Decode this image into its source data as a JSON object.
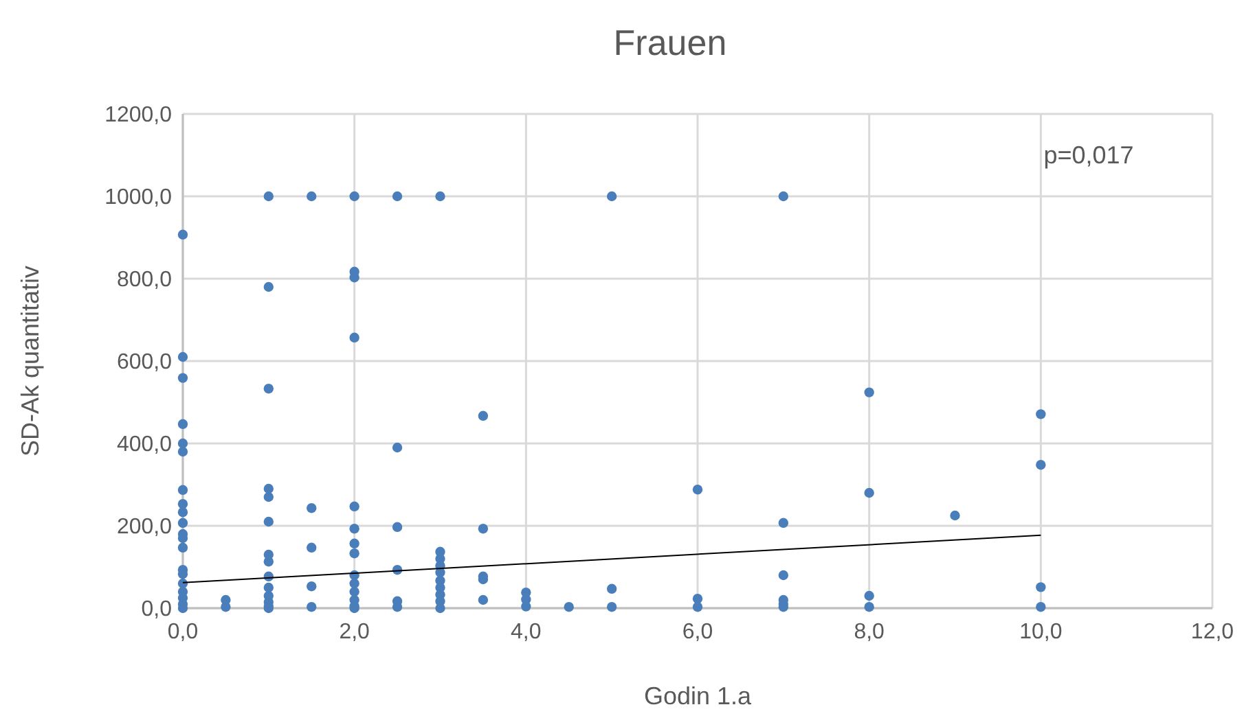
{
  "chart_data": {
    "type": "scatter",
    "title": "Frauen",
    "xlabel": "Godin 1.a",
    "ylabel": "SD-Ak quantitativ",
    "xlim": [
      0,
      12
    ],
    "ylim": [
      0,
      1200
    ],
    "xticks": [
      {
        "value": 0,
        "label": "0,0"
      },
      {
        "value": 2,
        "label": "2,0"
      },
      {
        "value": 4,
        "label": "4,0"
      },
      {
        "value": 6,
        "label": "6,0"
      },
      {
        "value": 8,
        "label": "8,0"
      },
      {
        "value": 10,
        "label": "10,0"
      },
      {
        "value": 12,
        "label": "12,0"
      }
    ],
    "yticks": [
      {
        "value": 0,
        "label": "0,0"
      },
      {
        "value": 200,
        "label": "200,0"
      },
      {
        "value": 400,
        "label": "400,0"
      },
      {
        "value": 600,
        "label": "600,0"
      },
      {
        "value": 800,
        "label": "800,0"
      },
      {
        "value": 1000,
        "label": "1000,0"
      },
      {
        "value": 1200,
        "label": "1200,0"
      }
    ],
    "grid": true,
    "marker": "circle",
    "annotations": [
      "p=0,017"
    ],
    "series": [
      {
        "color": "#4a7ebb",
        "x": [
          0,
          0,
          0,
          0,
          0,
          0,
          0,
          0,
          0,
          0,
          0,
          0,
          0,
          0,
          0,
          0,
          0,
          0,
          0,
          0,
          0.5,
          0.5,
          1,
          1,
          1,
          1,
          1,
          1,
          1,
          1,
          1,
          1,
          1,
          1,
          1,
          1,
          1.5,
          1.5,
          1.5,
          1.5,
          1.5,
          2,
          2,
          2,
          2,
          2,
          2,
          2,
          2,
          2,
          2,
          2,
          2,
          2,
          2,
          2.5,
          2.5,
          2.5,
          2.5,
          2.5,
          2.5,
          3,
          3,
          3,
          3,
          3,
          3,
          3,
          3,
          3,
          3,
          3.5,
          3.5,
          3.5,
          3.5,
          3.5,
          4,
          4,
          4,
          4.5,
          5,
          5,
          5,
          6,
          6,
          6,
          7,
          7,
          7,
          7,
          7,
          7,
          8,
          8,
          8,
          8,
          9,
          10,
          10,
          10,
          10
        ],
        "values": [
          907,
          610,
          559,
          447,
          400,
          380,
          287,
          253,
          233,
          207,
          180,
          170,
          147,
          93,
          83,
          60,
          40,
          25,
          10,
          0,
          20,
          3,
          1000,
          780,
          533,
          290,
          270,
          210,
          130,
          113,
          77,
          50,
          30,
          15,
          5,
          0,
          1000,
          243,
          147,
          53,
          3,
          1000,
          817,
          803,
          657,
          247,
          193,
          157,
          133,
          80,
          60,
          40,
          20,
          5,
          0,
          1000,
          390,
          197,
          93,
          17,
          3,
          1000,
          137,
          120,
          103,
          87,
          67,
          50,
          33,
          17,
          0,
          467,
          193,
          77,
          70,
          20,
          38,
          21,
          4,
          3,
          1000,
          47,
          3,
          288,
          23,
          3,
          1000,
          207,
          80,
          20,
          10,
          3,
          524,
          280,
          30,
          3,
          225,
          471,
          348,
          51,
          3
        ]
      },
      {
        "type": "line",
        "color": "#000000",
        "x": [
          0,
          10
        ],
        "values": [
          62,
          177
        ],
        "marker": "none"
      }
    ]
  }
}
